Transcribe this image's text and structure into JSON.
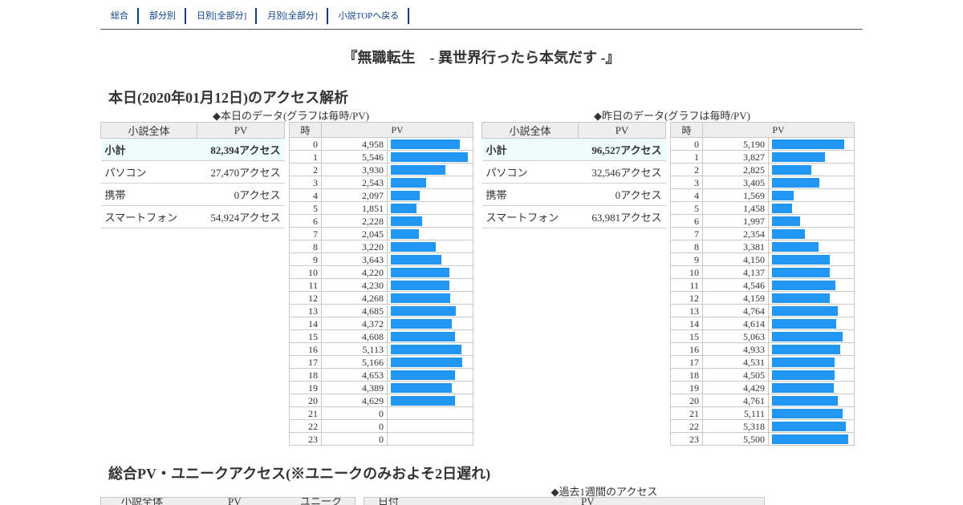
{
  "nav": [
    "総合",
    "部分別",
    "日別[全部分]",
    "月別[全部分]",
    "小説TOPへ戻る"
  ],
  "novel_title": "『無職転生　- 異世界行ったら本気だす -』",
  "section_today": "本日(2020年01月12日)のアクセス解析",
  "today": {
    "caption": "◆本日のデータ(グラフは毎時/PV)",
    "summary_headers": [
      "小説全体",
      "PV"
    ],
    "summary": [
      {
        "label": "小計",
        "value": "82,394アクセス"
      },
      {
        "label": "パソコン",
        "value": "27,470アクセス"
      },
      {
        "label": "携帯",
        "value": "0アクセス"
      },
      {
        "label": "スマートフォン",
        "value": "54,924アクセス"
      }
    ],
    "hour_headers": [
      "時",
      "PV"
    ],
    "hours": [
      {
        "h": "0",
        "pv": "4,958",
        "n": 4958
      },
      {
        "h": "1",
        "pv": "5,546",
        "n": 5546
      },
      {
        "h": "2",
        "pv": "3,930",
        "n": 3930
      },
      {
        "h": "3",
        "pv": "2,543",
        "n": 2543
      },
      {
        "h": "4",
        "pv": "2,097",
        "n": 2097
      },
      {
        "h": "5",
        "pv": "1,851",
        "n": 1851
      },
      {
        "h": "6",
        "pv": "2,228",
        "n": 2228
      },
      {
        "h": "7",
        "pv": "2,045",
        "n": 2045
      },
      {
        "h": "8",
        "pv": "3,220",
        "n": 3220
      },
      {
        "h": "9",
        "pv": "3,643",
        "n": 3643
      },
      {
        "h": "10",
        "pv": "4,220",
        "n": 4220
      },
      {
        "h": "11",
        "pv": "4,230",
        "n": 4230
      },
      {
        "h": "12",
        "pv": "4,268",
        "n": 4268
      },
      {
        "h": "13",
        "pv": "4,685",
        "n": 4685
      },
      {
        "h": "14",
        "pv": "4,372",
        "n": 4372
      },
      {
        "h": "15",
        "pv": "4,608",
        "n": 4608
      },
      {
        "h": "16",
        "pv": "5,113",
        "n": 5113
      },
      {
        "h": "17",
        "pv": "5,166",
        "n": 5166
      },
      {
        "h": "18",
        "pv": "4,653",
        "n": 4653
      },
      {
        "h": "19",
        "pv": "4,389",
        "n": 4389
      },
      {
        "h": "20",
        "pv": "4,629",
        "n": 4629
      },
      {
        "h": "21",
        "pv": "0",
        "n": 0
      },
      {
        "h": "22",
        "pv": "0",
        "n": 0
      },
      {
        "h": "23",
        "pv": "0",
        "n": 0
      }
    ]
  },
  "yesterday": {
    "caption": "◆昨日のデータ(グラフは毎時/PV)",
    "summary_headers": [
      "小説全体",
      "PV"
    ],
    "summary": [
      {
        "label": "小計",
        "value": "96,527アクセス"
      },
      {
        "label": "パソコン",
        "value": "32,546アクセス"
      },
      {
        "label": "携帯",
        "value": "0アクセス"
      },
      {
        "label": "スマートフォン",
        "value": "63,981アクセス"
      }
    ],
    "hour_headers": [
      "時",
      "PV"
    ],
    "hours": [
      {
        "h": "0",
        "pv": "5,190",
        "n": 5190
      },
      {
        "h": "1",
        "pv": "3,827",
        "n": 3827
      },
      {
        "h": "2",
        "pv": "2,825",
        "n": 2825
      },
      {
        "h": "3",
        "pv": "3,405",
        "n": 3405
      },
      {
        "h": "4",
        "pv": "1,569",
        "n": 1569
      },
      {
        "h": "5",
        "pv": "1,458",
        "n": 1458
      },
      {
        "h": "6",
        "pv": "1,997",
        "n": 1997
      },
      {
        "h": "7",
        "pv": "2,354",
        "n": 2354
      },
      {
        "h": "8",
        "pv": "3,381",
        "n": 3381
      },
      {
        "h": "9",
        "pv": "4,150",
        "n": 4150
      },
      {
        "h": "10",
        "pv": "4,137",
        "n": 4137
      },
      {
        "h": "11",
        "pv": "4,546",
        "n": 4546
      },
      {
        "h": "12",
        "pv": "4,159",
        "n": 4159
      },
      {
        "h": "13",
        "pv": "4,764",
        "n": 4764
      },
      {
        "h": "14",
        "pv": "4,614",
        "n": 4614
      },
      {
        "h": "15",
        "pv": "5,063",
        "n": 5063
      },
      {
        "h": "16",
        "pv": "4,933",
        "n": 4933
      },
      {
        "h": "17",
        "pv": "4,531",
        "n": 4531
      },
      {
        "h": "18",
        "pv": "4,505",
        "n": 4505
      },
      {
        "h": "19",
        "pv": "4,429",
        "n": 4429
      },
      {
        "h": "20",
        "pv": "4,761",
        "n": 4761
      },
      {
        "h": "21",
        "pv": "5,111",
        "n": 5111
      },
      {
        "h": "22",
        "pv": "5,318",
        "n": 5318
      },
      {
        "h": "23",
        "pv": "5,500",
        "n": 5500
      }
    ]
  },
  "bar_max": 5550,
  "colors": {
    "bar": "#2196f3",
    "nav": "#0b3c8c",
    "total_row": "#eefcfc"
  },
  "section_total": "総合PV・ユニークアクセス(※ユニークのみおよそ2日遅れ)",
  "week_caption": "◆過去1週間のアクセス",
  "total_headers": [
    "小説全体",
    "PV",
    "ユニーク"
  ],
  "week_headers": [
    "日付",
    "PV"
  ]
}
